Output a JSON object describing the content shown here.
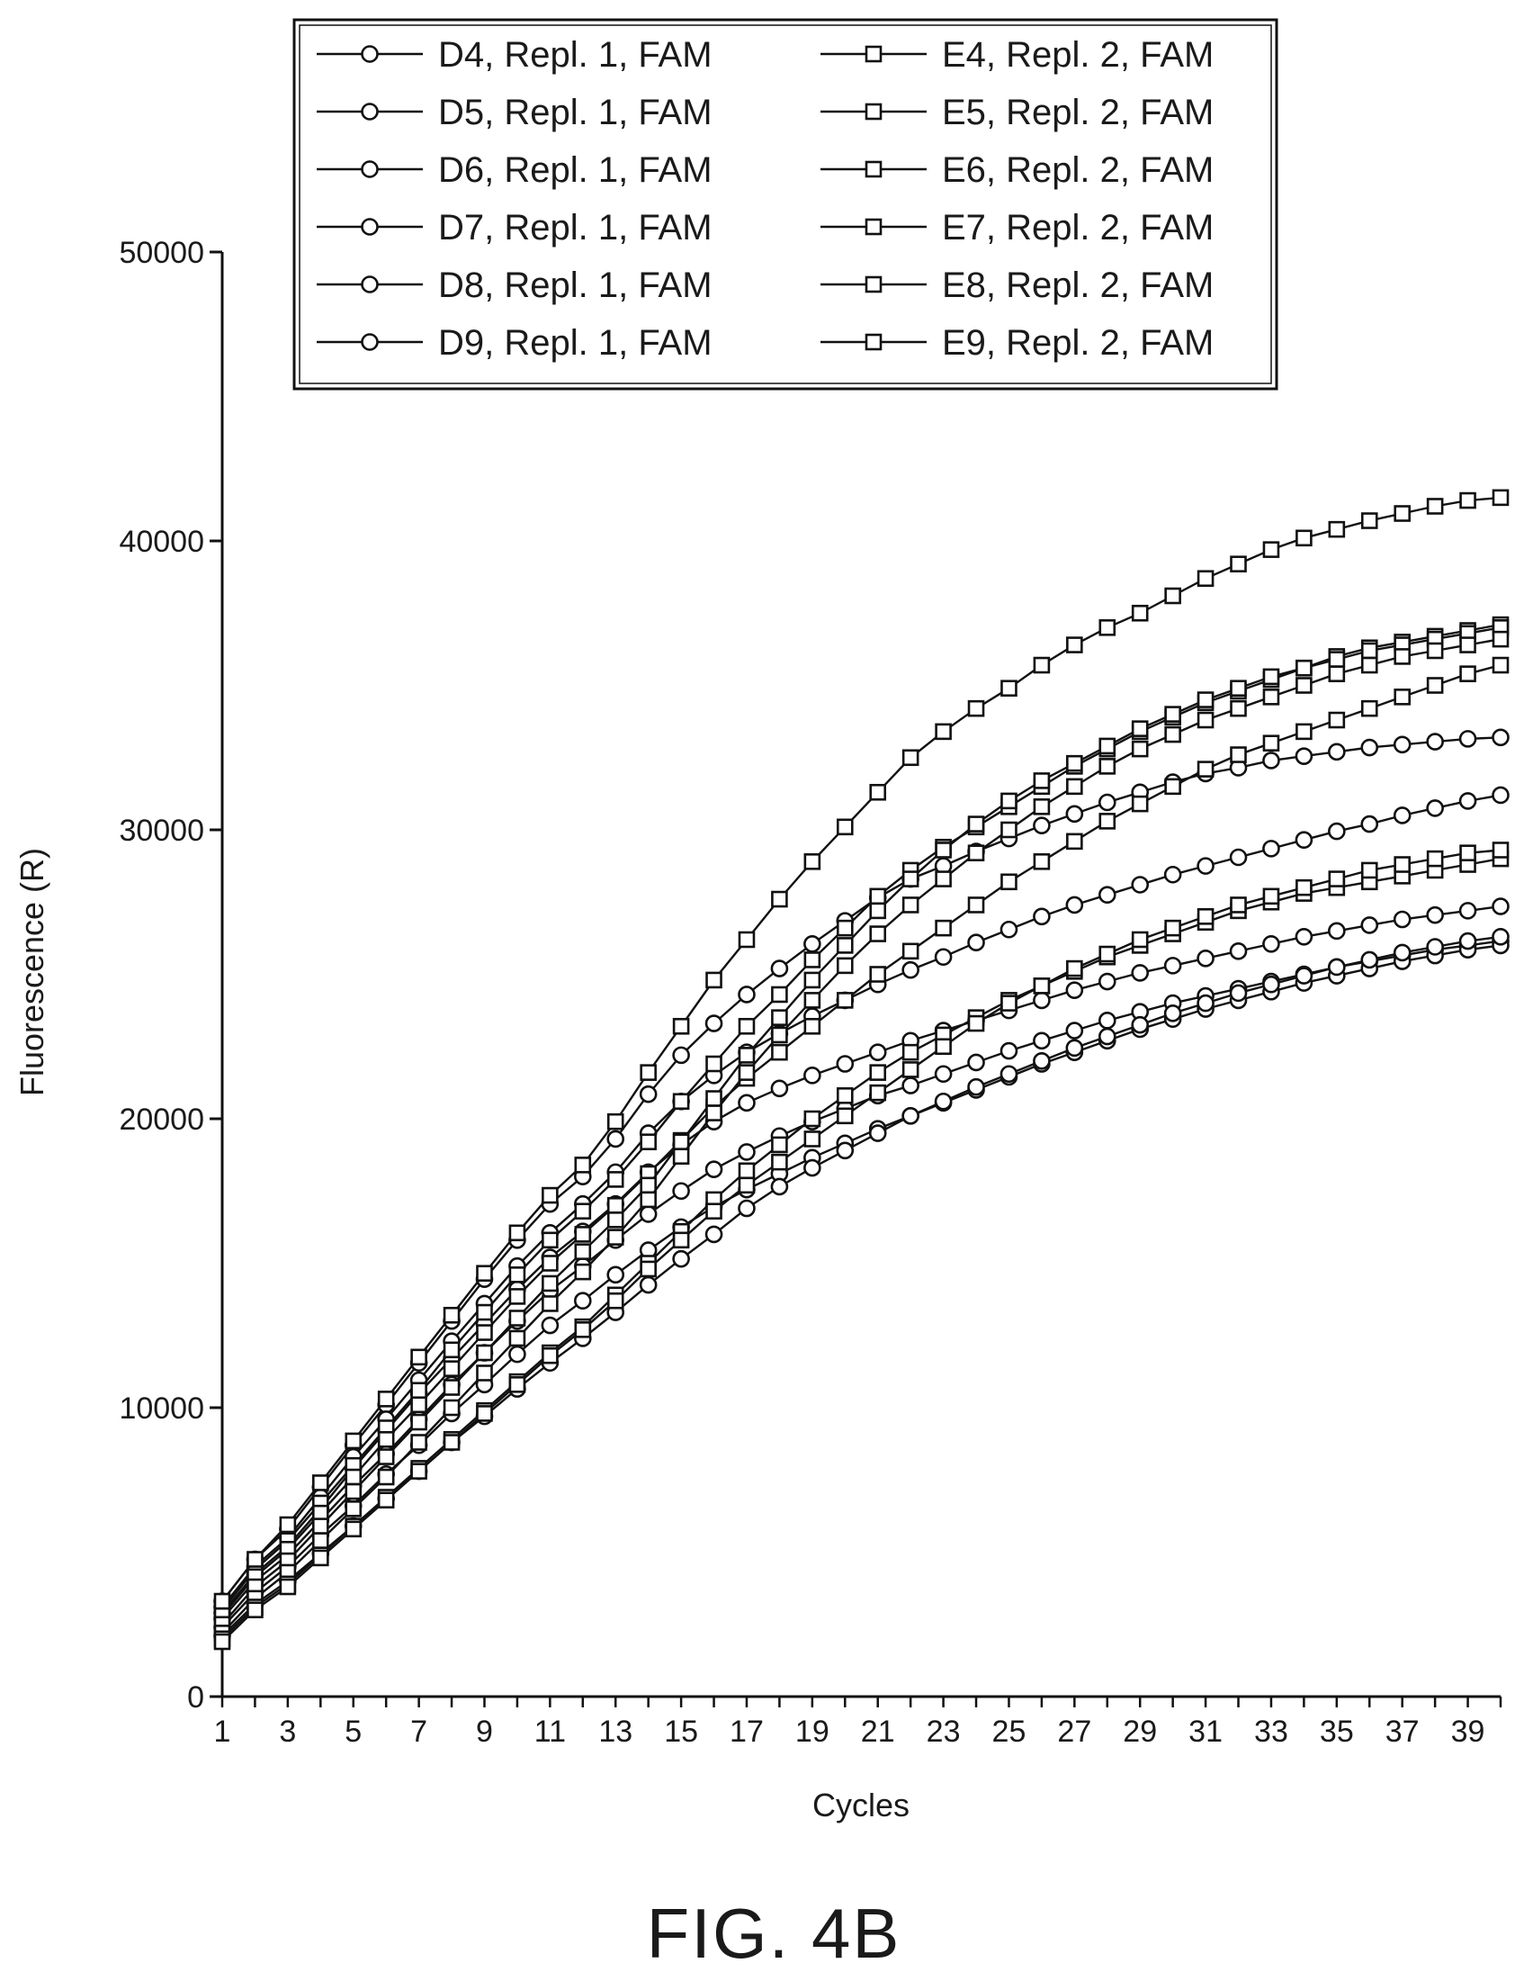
{
  "figure_label": "FIG. 4B",
  "chart_data": {
    "type": "line",
    "xlabel": "Cycles",
    "ylabel": "Fluorescence (R)",
    "xlim": [
      1,
      40
    ],
    "ylim": [
      0,
      50000
    ],
    "x_ticks": [
      1,
      3,
      5,
      7,
      9,
      11,
      13,
      15,
      17,
      19,
      21,
      23,
      25,
      27,
      29,
      31,
      33,
      35,
      37,
      39
    ],
    "y_ticks": [
      0,
      10000,
      20000,
      30000,
      40000,
      50000
    ],
    "grid": false,
    "legend_position": "top",
    "x": [
      1,
      2,
      3,
      4,
      5,
      6,
      7,
      8,
      9,
      10,
      11,
      12,
      13,
      14,
      15,
      16,
      17,
      18,
      19,
      20,
      21,
      22,
      23,
      24,
      25,
      26,
      27,
      28,
      29,
      30,
      31,
      32,
      33,
      34,
      35,
      36,
      37,
      38,
      39,
      40
    ],
    "series": [
      {
        "name": "D4, Repl. 1, FAM",
        "marker": "circle",
        "values": [
          3300,
          4750,
          5800,
          7250,
          8700,
          10100,
          11550,
          13000,
          14450,
          15800,
          17050,
          18000,
          19300,
          20850,
          22200,
          23300,
          24300,
          25200,
          26050,
          26850,
          27650,
          28300,
          28750,
          29250,
          29700,
          30150,
          30550,
          30950,
          31300,
          31650,
          31950,
          32150,
          32400,
          32550,
          32700,
          32850,
          32950,
          33050,
          33150,
          33200
        ]
      },
      {
        "name": "D5, Repl. 1, FAM",
        "marker": "circle",
        "values": [
          3100,
          4500,
          5500,
          6900,
          8300,
          9600,
          10950,
          12300,
          13600,
          14900,
          16050,
          17050,
          18150,
          19500,
          20600,
          21500,
          22300,
          22950,
          23550,
          24100,
          24650,
          25150,
          25600,
          26100,
          26550,
          27000,
          27400,
          27750,
          28100,
          28450,
          28750,
          29050,
          29350,
          29650,
          29950,
          30200,
          30500,
          30750,
          31000,
          31200
        ]
      },
      {
        "name": "D6, Repl. 1, FAM",
        "marker": "circle",
        "values": [
          2900,
          4250,
          5200,
          6500,
          7900,
          9200,
          10500,
          11700,
          12900,
          14100,
          15200,
          16100,
          17050,
          18150,
          19100,
          19900,
          20550,
          21050,
          21500,
          21900,
          22300,
          22700,
          23050,
          23400,
          23750,
          24100,
          24450,
          24750,
          25050,
          25300,
          25550,
          25800,
          26050,
          26300,
          26500,
          26700,
          26900,
          27050,
          27200,
          27350
        ]
      },
      {
        "name": "D7, Repl. 1, FAM",
        "marker": "circle",
        "values": [
          2700,
          4000,
          4900,
          6100,
          7300,
          8400,
          9600,
          10800,
          11900,
          13000,
          14050,
          14900,
          15800,
          16700,
          17500,
          18250,
          18850,
          19400,
          19900,
          20350,
          20800,
          21150,
          21550,
          21950,
          22350,
          22700,
          23050,
          23400,
          23700,
          24000,
          24250,
          24500,
          24750,
          25000,
          25250,
          25450,
          25650,
          25850,
          26000,
          26150
        ]
      },
      {
        "name": "D8, Repl. 1, FAM",
        "marker": "circle",
        "values": [
          2400,
          3600,
          4500,
          5600,
          6600,
          7700,
          8700,
          9800,
          10800,
          11850,
          12850,
          13700,
          14600,
          15450,
          16250,
          16950,
          17550,
          18100,
          18650,
          19150,
          19650,
          20100,
          20550,
          21000,
          21450,
          21900,
          22300,
          22700,
          23100,
          23450,
          23800,
          24100,
          24400,
          24700,
          24950,
          25200,
          25450,
          25650,
          25850,
          26000
        ]
      },
      {
        "name": "D9, Repl. 1, FAM",
        "marker": "circle",
        "values": [
          2100,
          3200,
          4000,
          4950,
          5900,
          6850,
          7800,
          8800,
          9700,
          10650,
          11550,
          12400,
          13300,
          14250,
          15150,
          16000,
          16900,
          17650,
          18300,
          18900,
          19500,
          20100,
          20600,
          21100,
          21550,
          22000,
          22450,
          22850,
          23250,
          23650,
          24000,
          24350,
          24650,
          24950,
          25250,
          25500,
          25750,
          25950,
          26150,
          26300
        ]
      },
      {
        "name": "E4, Repl. 2, FAM",
        "marker": "square",
        "values": [
          3000,
          4400,
          5400,
          6700,
          8000,
          9300,
          10600,
          12000,
          13300,
          14600,
          15800,
          16800,
          17900,
          19200,
          20600,
          21900,
          23200,
          24300,
          25500,
          26600,
          27700,
          28600,
          29400,
          30100,
          30800,
          31500,
          32200,
          32800,
          33400,
          33900,
          34400,
          34800,
          35200,
          35600,
          36000,
          36300,
          36500,
          36700,
          36900,
          37100
        ]
      },
      {
        "name": "E5, Repl. 2, FAM",
        "marker": "square",
        "values": [
          2800,
          4150,
          5100,
          6350,
          7600,
          8900,
          10100,
          11350,
          12600,
          13850,
          15000,
          16000,
          17000,
          18100,
          19250,
          20400,
          21400,
          22300,
          23200,
          24100,
          25000,
          25800,
          26600,
          27400,
          28200,
          28900,
          29600,
          30300,
          30900,
          31500,
          32100,
          32600,
          33000,
          33400,
          33800,
          34200,
          34600,
          35000,
          35400,
          35700
        ]
      },
      {
        "name": "E6, Repl. 2, FAM",
        "marker": "square",
        "values": [
          2500,
          3800,
          4700,
          5900,
          7100,
          8300,
          9500,
          10700,
          11900,
          13100,
          14300,
          15400,
          16500,
          17700,
          19200,
          20700,
          22200,
          23500,
          24800,
          26000,
          27200,
          28300,
          29300,
          30200,
          31000,
          31700,
          32300,
          32900,
          33500,
          34000,
          34500,
          34900,
          35300,
          35600,
          35900,
          36200,
          36400,
          36600,
          36800,
          37000
        ]
      },
      {
        "name": "E7, Repl. 2, FAM",
        "marker": "square",
        "values": [
          2200,
          3400,
          4300,
          5400,
          6500,
          7600,
          8800,
          10000,
          11200,
          12400,
          13600,
          14700,
          15900,
          17200,
          18700,
          20200,
          21600,
          22900,
          24100,
          25300,
          26400,
          27400,
          28300,
          29200,
          30000,
          30800,
          31500,
          32200,
          32800,
          33300,
          33800,
          34200,
          34600,
          35000,
          35400,
          35700,
          36000,
          36200,
          36400,
          36600
        ]
      },
      {
        "name": "E8, Repl. 2, FAM",
        "marker": "square",
        "values": [
          2000,
          3100,
          3900,
          4900,
          5900,
          6900,
          7900,
          8900,
          9900,
          10900,
          11900,
          12800,
          13900,
          15000,
          16100,
          17200,
          18200,
          19100,
          20000,
          20800,
          21600,
          22300,
          22900,
          23500,
          24100,
          24600,
          25100,
          25600,
          26000,
          26400,
          26800,
          27200,
          27500,
          27800,
          28000,
          28200,
          28400,
          28600,
          28800,
          29000
        ]
      },
      {
        "name": "E9, Repl. 2, FAM",
        "marker": "square",
        "values": [
          1900,
          3000,
          3800,
          4800,
          5800,
          6800,
          7800,
          8800,
          9800,
          10800,
          11800,
          12700,
          13700,
          14800,
          15800,
          16800,
          17700,
          18500,
          19300,
          20100,
          20900,
          21700,
          22500,
          23300,
          24000,
          24600,
          25200,
          25700,
          26200,
          26600,
          27000,
          27400,
          27700,
          28000,
          28300,
          28600,
          28800,
          29000,
          29200,
          29300
        ]
      },
      {
        "name": "",
        "marker": "square",
        "values": [
          3300,
          4750,
          5950,
          7400,
          8850,
          10300,
          11750,
          13200,
          14650,
          16050,
          17350,
          18400,
          19900,
          21600,
          23200,
          24800,
          26200,
          27600,
          28900,
          30100,
          31300,
          32500,
          33400,
          34200,
          34900,
          35700,
          36400,
          37000,
          37500,
          38100,
          38700,
          39200,
          39700,
          40100,
          40400,
          40700,
          40950,
          41200,
          41400,
          41500
        ]
      }
    ]
  }
}
